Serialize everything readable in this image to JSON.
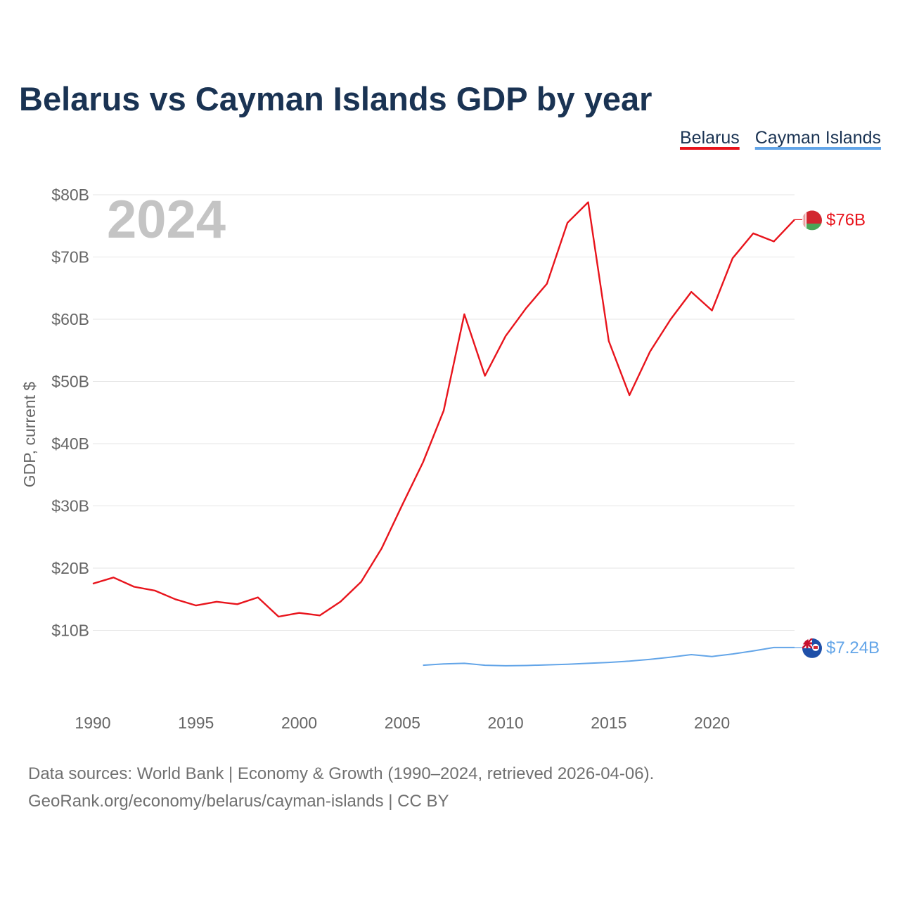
{
  "chart_data": {
    "type": "line",
    "title": "Belarus vs Cayman Islands GDP by year",
    "ylabel": "GDP, current $",
    "xlabel": "",
    "overlay_year": "2024",
    "xlim": [
      1990,
      2024
    ],
    "ylim": [
      0,
      80
    ],
    "x_ticks": [
      {
        "value": 1990,
        "label": "1990"
      },
      {
        "value": 1995,
        "label": "1995"
      },
      {
        "value": 2000,
        "label": "2000"
      },
      {
        "value": 2005,
        "label": "2005"
      },
      {
        "value": 2010,
        "label": "2010"
      },
      {
        "value": 2015,
        "label": "2015"
      },
      {
        "value": 2020,
        "label": "2020"
      }
    ],
    "y_ticks": [
      {
        "value": 10,
        "label": "$10B"
      },
      {
        "value": 20,
        "label": "$20B"
      },
      {
        "value": 30,
        "label": "$30B"
      },
      {
        "value": 40,
        "label": "$40B"
      },
      {
        "value": 50,
        "label": "$50B"
      },
      {
        "value": 60,
        "label": "$60B"
      },
      {
        "value": 70,
        "label": "$70B"
      },
      {
        "value": 80,
        "label": "$80B"
      }
    ],
    "legend_position": "top-right",
    "series": [
      {
        "name": "Belarus",
        "color": "#e8141c",
        "flag_icon": "belarus-flag-icon",
        "end_label": "$76B",
        "x": [
          1990,
          1991,
          1992,
          1993,
          1994,
          1995,
          1996,
          1997,
          1998,
          1999,
          2000,
          2001,
          2002,
          2003,
          2004,
          2005,
          2006,
          2007,
          2008,
          2009,
          2010,
          2011,
          2012,
          2013,
          2014,
          2015,
          2016,
          2017,
          2018,
          2019,
          2020,
          2021,
          2022,
          2023,
          2024
        ],
        "values": [
          17.5,
          18.5,
          17.0,
          16.4,
          15.0,
          14.0,
          14.6,
          14.2,
          15.3,
          12.2,
          12.8,
          12.4,
          14.6,
          17.8,
          23.2,
          30.2,
          37.0,
          45.3,
          60.8,
          50.9,
          57.3,
          61.8,
          65.7,
          75.5,
          78.8,
          56.5,
          47.8,
          54.8,
          60.0,
          64.4,
          61.4,
          69.8,
          73.8,
          72.5,
          76.0
        ]
      },
      {
        "name": "Cayman Islands",
        "color": "#63a5e8",
        "flag_icon": "cayman-islands-flag-icon",
        "end_label": "$7.24B",
        "x": [
          2006,
          2007,
          2008,
          2009,
          2010,
          2011,
          2012,
          2013,
          2014,
          2015,
          2016,
          2017,
          2018,
          2019,
          2020,
          2021,
          2022,
          2023,
          2024
        ],
        "values": [
          4.4,
          4.6,
          4.7,
          4.4,
          4.3,
          4.35,
          4.45,
          4.55,
          4.7,
          4.85,
          5.05,
          5.35,
          5.7,
          6.1,
          5.8,
          6.2,
          6.7,
          7.24,
          7.24
        ]
      }
    ],
    "source_lines": [
      "Data sources: World Bank | Economy & Growth (1990–2024, retrieved 2026-04-06).",
      "GeoRank.org/economy/belarus/cayman-islands | CC BY"
    ]
  }
}
